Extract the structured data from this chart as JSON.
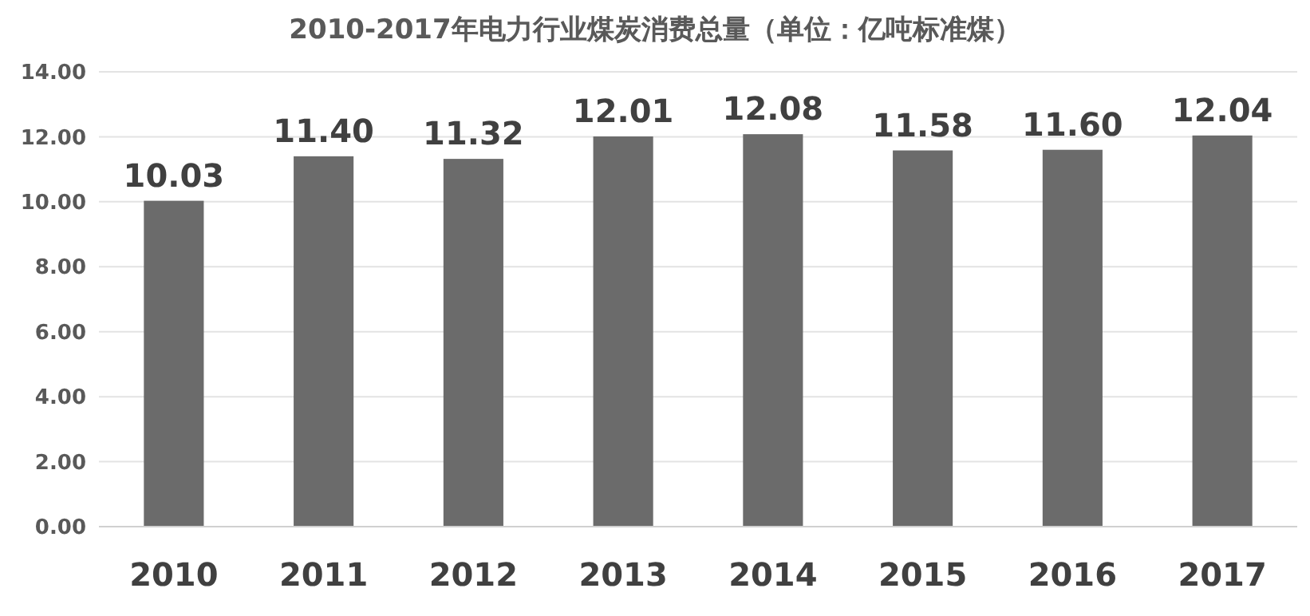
{
  "chart_data": {
    "type": "bar",
    "title": "2010-2017年电力行业煤炭消费总量（单位：亿吨标准煤）",
    "categories": [
      "2010",
      "2011",
      "2012",
      "2013",
      "2014",
      "2015",
      "2016",
      "2017"
    ],
    "values": [
      10.03,
      11.4,
      11.32,
      12.01,
      12.08,
      11.58,
      11.6,
      12.04
    ],
    "value_labels": [
      "10.03",
      "11.40",
      "11.32",
      "12.01",
      "12.08",
      "11.58",
      "11.60",
      "12.04"
    ],
    "color": "#6b6b6b",
    "ylim": [
      0,
      14
    ],
    "yticks": [
      {
        "value": 0,
        "label": "0.00"
      },
      {
        "value": 2,
        "label": "2.00"
      },
      {
        "value": 4,
        "label": "4.00"
      },
      {
        "value": 6,
        "label": "6.00"
      },
      {
        "value": 8,
        "label": "8.00"
      },
      {
        "value": 10,
        "label": "10.00"
      },
      {
        "value": 12,
        "label": "12.00"
      },
      {
        "value": 14,
        "label": "14.00"
      }
    ],
    "grid": "y"
  }
}
